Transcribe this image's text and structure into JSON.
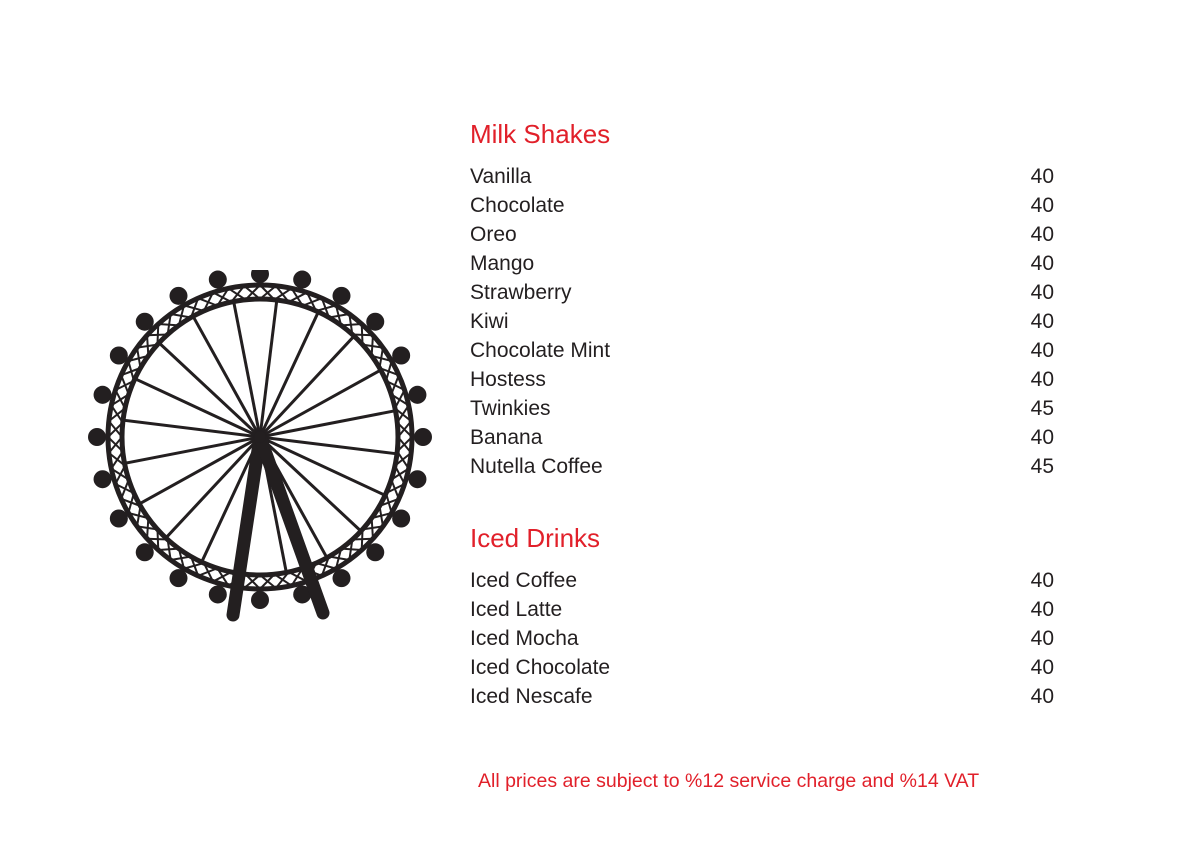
{
  "sections": [
    {
      "title": "Milk Shakes",
      "items": [
        {
          "name": "Vanilla",
          "price": "40"
        },
        {
          "name": "Chocolate",
          "price": "40"
        },
        {
          "name": "Oreo",
          "price": "40"
        },
        {
          "name": "Mango",
          "price": "40"
        },
        {
          "name": "Strawberry",
          "price": "40"
        },
        {
          "name": "Kiwi",
          "price": "40"
        },
        {
          "name": "Chocolate Mint",
          "price": "40"
        },
        {
          "name": "Hostess",
          "price": "40"
        },
        {
          "name": "Twinkies",
          "price": "45"
        },
        {
          "name": "Banana",
          "price": "40"
        },
        {
          "name": "Nutella Coffee",
          "price": "45"
        }
      ]
    },
    {
      "title": "Iced Drinks",
      "items": [
        {
          "name": "Iced Coffee",
          "price": "40"
        },
        {
          "name": "Iced Latte",
          "price": "40"
        },
        {
          "name": "Iced Mocha",
          "price": "40"
        },
        {
          "name": "Iced Chocolate",
          "price": "40"
        },
        {
          "name": "Iced Nescafe",
          "price": "40"
        }
      ]
    }
  ],
  "footer": "All prices are subject to %12 service charge and %14 VAT",
  "colors": {
    "accent": "#e1202a",
    "text": "#231f20"
  },
  "illustration": "ferris-wheel"
}
